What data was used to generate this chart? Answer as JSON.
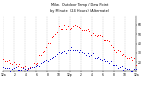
{
  "title1": "Milw.  Outdoor Temp / Dew Point",
  "title2": "by Minute  (24 Hours) (Alternate)",
  "bg_color": "#ffffff",
  "grid_color": "#aaaaaa",
  "temp_color": "#ff0000",
  "dew_color": "#0000cc",
  "ylim": [
    10,
    70
  ],
  "xlim": [
    0,
    1440
  ],
  "yticks": [
    20,
    30,
    40,
    50,
    60
  ],
  "ytick_labels": [
    "20",
    "30",
    "40",
    "50",
    "60"
  ],
  "xtick_positions": [
    0,
    120,
    240,
    360,
    480,
    600,
    720,
    840,
    960,
    1080,
    1200,
    1320,
    1440
  ],
  "xtick_labels": [
    "12a",
    "2",
    "4",
    "6",
    "8",
    "10",
    "12p",
    "2",
    "4",
    "6",
    "8",
    "10",
    "12a"
  ],
  "temp_base": [
    22,
    21,
    20.5,
    20,
    19,
    18.5,
    17.5,
    17,
    17,
    16.5,
    16,
    15.5,
    15,
    15,
    15.5,
    16,
    17,
    18,
    20,
    22,
    25,
    28,
    31,
    34,
    37,
    40,
    43,
    46,
    49,
    51,
    53,
    55,
    56,
    57,
    58,
    58,
    59,
    59,
    59,
    59,
    59,
    58.5,
    58,
    57.5,
    57,
    56,
    55,
    54,
    53,
    52,
    51,
    50,
    49,
    48,
    47,
    46,
    45,
    44,
    43,
    41,
    39,
    37,
    35,
    33,
    31,
    29,
    28,
    27,
    26,
    25,
    24,
    23,
    22,
    22,
    22
  ],
  "dew_base": [
    14,
    14,
    13.5,
    13,
    13,
    13,
    13,
    12.5,
    12,
    12,
    12,
    12,
    12,
    12,
    12.5,
    13,
    14,
    15,
    16,
    17,
    18,
    19,
    20,
    21,
    22,
    23,
    24,
    25,
    26,
    27,
    28,
    29,
    30,
    31,
    32,
    32,
    33,
    33,
    33,
    33,
    33,
    32.5,
    32,
    31.5,
    30,
    29,
    29,
    28,
    28,
    27,
    27,
    26,
    25,
    25,
    24,
    24,
    23,
    22,
    21,
    20,
    19,
    18,
    17,
    16,
    15,
    14,
    14,
    13,
    13,
    12,
    12,
    12,
    12,
    12,
    12
  ],
  "noise_temp": 1.8,
  "noise_dew": 1.2,
  "n_points": 75
}
